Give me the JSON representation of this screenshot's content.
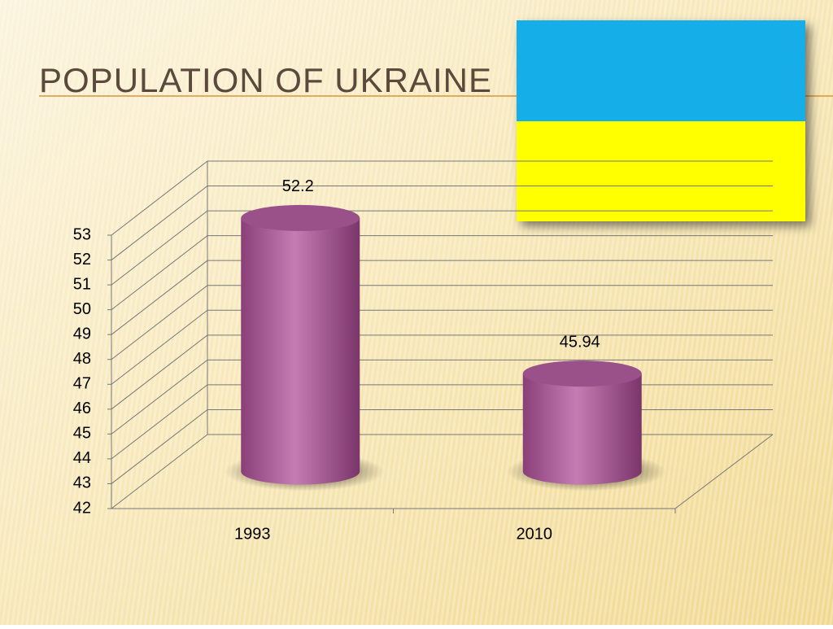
{
  "chart_data": {
    "type": "bar",
    "title": "POPULATION OF UKRAINE",
    "categories": [
      "1993",
      "2010"
    ],
    "values": [
      52.2,
      45.94
    ],
    "color": "#b0609a",
    "ylim": [
      42,
      53
    ],
    "yticks": [
      42,
      43,
      44,
      45,
      46,
      47,
      48,
      49,
      50,
      51,
      52,
      53
    ],
    "grid": true
  }
}
